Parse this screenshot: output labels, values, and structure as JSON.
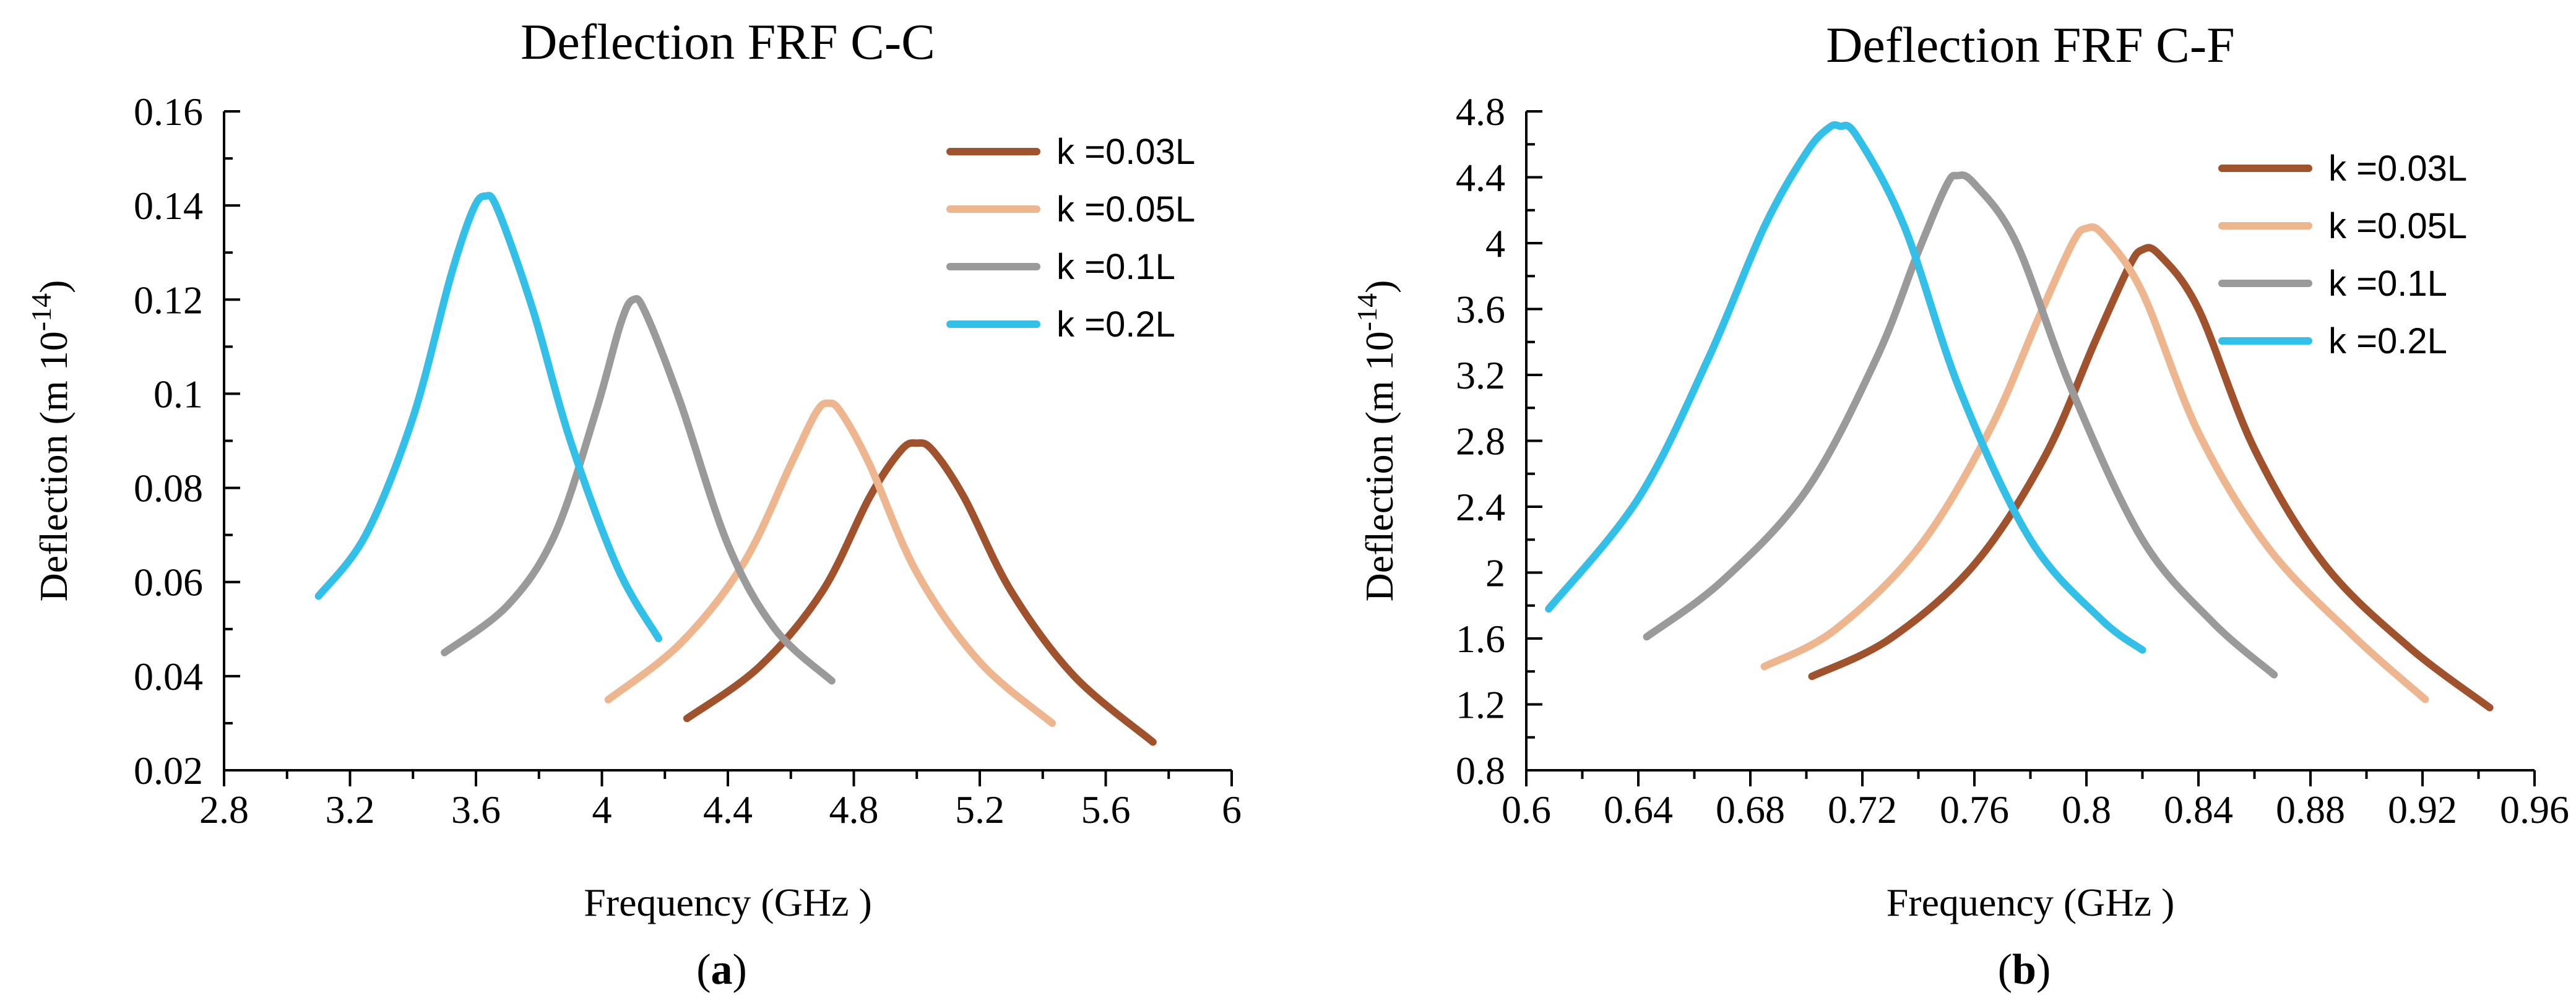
{
  "chart_data": [
    {
      "type": "line",
      "title": "Deflection FRF  C-C",
      "xlabel": "Frequency (GHz )",
      "ylabel_main": "Deflection (m 10",
      "ylabel_exp": "-14",
      "ylabel_tail": ")",
      "caption_open": "(",
      "caption_letter": "a",
      "caption_close": ")",
      "xlim": [
        2.8,
        6.0
      ],
      "ylim": [
        0.02,
        0.16
      ],
      "xticks": [
        2.8,
        3.2,
        3.6,
        4,
        4.4,
        4.8,
        5.2,
        5.6,
        6
      ],
      "xtick_labels": [
        "2.8",
        "3.2",
        "3.6",
        "4",
        "4.4",
        "4.8",
        "5.2",
        "5.6",
        "6"
      ],
      "yticks": [
        0.02,
        0.04,
        0.06,
        0.08,
        0.1,
        0.12,
        0.14,
        0.16
      ],
      "ytick_labels": [
        "0.02",
        "0.04",
        "0.06",
        "0.08",
        "0.1",
        "0.12",
        "0.14",
        "0.16"
      ],
      "grid": false,
      "legend_position": "top-right",
      "series": [
        {
          "name": "k =0.03L",
          "color": "#A0522D",
          "x": [
            4.27,
            4.5,
            4.7,
            4.85,
            4.95,
            5.0,
            5.05,
            5.15,
            5.3,
            5.5,
            5.75
          ],
          "y": [
            0.031,
            0.042,
            0.058,
            0.078,
            0.088,
            0.0895,
            0.088,
            0.078,
            0.058,
            0.04,
            0.026
          ]
        },
        {
          "name": "k =0.05L",
          "color": "#EDB68E",
          "x": [
            4.02,
            4.25,
            4.45,
            4.6,
            4.68,
            4.72,
            4.76,
            4.85,
            5.0,
            5.2,
            5.43
          ],
          "y": [
            0.035,
            0.047,
            0.064,
            0.085,
            0.096,
            0.098,
            0.096,
            0.085,
            0.062,
            0.043,
            0.03
          ]
        },
        {
          "name": "k =0.1L",
          "color": "#9A9A9A",
          "x": [
            3.5,
            3.7,
            3.85,
            3.98,
            4.06,
            4.1,
            4.14,
            4.25,
            4.4,
            4.55,
            4.73
          ],
          "y": [
            0.045,
            0.055,
            0.07,
            0.096,
            0.115,
            0.12,
            0.117,
            0.098,
            0.068,
            0.05,
            0.039
          ]
        },
        {
          "name": "k =0.2L",
          "color": "#33C0E8",
          "x": [
            3.1,
            3.25,
            3.4,
            3.52,
            3.59,
            3.63,
            3.67,
            3.78,
            3.9,
            4.05,
            4.18
          ],
          "y": [
            0.057,
            0.07,
            0.095,
            0.125,
            0.139,
            0.142,
            0.139,
            0.118,
            0.09,
            0.063,
            0.048
          ]
        }
      ]
    },
    {
      "type": "line",
      "title": "Deflection FRF  C-F",
      "xlabel": "Frequency (GHz )",
      "ylabel_main": "Deflection (m 10",
      "ylabel_exp": "-14",
      "ylabel_tail": ")",
      "caption_open": "(",
      "caption_letter": "b",
      "caption_close": ")",
      "xlim": [
        0.6,
        0.96
      ],
      "ylim": [
        0.8,
        4.8
      ],
      "xticks": [
        0.6,
        0.64,
        0.68,
        0.72,
        0.76,
        0.8,
        0.84,
        0.88,
        0.92,
        0.96
      ],
      "xtick_labels": [
        "0.6",
        "0.64",
        "0.68",
        "0.72",
        "0.76",
        "0.8",
        "0.84",
        "0.88",
        "0.92",
        "0.96"
      ],
      "yticks": [
        0.8,
        1.2,
        1.6,
        2,
        2.4,
        2.8,
        3.2,
        3.6,
        4,
        4.4,
        4.8
      ],
      "ytick_labels": [
        "0.8",
        "1.2",
        "1.6",
        "2",
        "2.4",
        "2.8",
        "3.2",
        "3.6",
        "4",
        "4.4",
        "4.8"
      ],
      "grid": false,
      "legend_position": "top-right",
      "series": [
        {
          "name": "k =0.03L",
          "color": "#A0522D",
          "x": [
            0.702,
            0.73,
            0.76,
            0.785,
            0.803,
            0.815,
            0.82,
            0.826,
            0.84,
            0.86,
            0.885,
            0.915,
            0.944
          ],
          "y": [
            1.37,
            1.6,
            2.05,
            2.7,
            3.4,
            3.85,
            3.96,
            3.93,
            3.6,
            2.75,
            2.05,
            1.55,
            1.18
          ]
        },
        {
          "name": "k =0.05L",
          "color": "#EDB68E",
          "x": [
            0.685,
            0.71,
            0.74,
            0.765,
            0.783,
            0.795,
            0.8,
            0.806,
            0.82,
            0.84,
            0.865,
            0.895,
            0.921
          ],
          "y": [
            1.43,
            1.65,
            2.15,
            2.85,
            3.55,
            4.0,
            4.09,
            4.05,
            3.7,
            2.85,
            2.15,
            1.62,
            1.23
          ]
        },
        {
          "name": "k =0.1L",
          "color": "#9A9A9A",
          "x": [
            0.643,
            0.67,
            0.7,
            0.725,
            0.74,
            0.75,
            0.754,
            0.76,
            0.775,
            0.795,
            0.82,
            0.845,
            0.867
          ],
          "y": [
            1.61,
            1.95,
            2.5,
            3.3,
            3.95,
            4.35,
            4.41,
            4.36,
            4.0,
            3.1,
            2.2,
            1.7,
            1.38
          ]
        },
        {
          "name": "k =0.2L",
          "color": "#33C0E8",
          "x": [
            0.608,
            0.64,
            0.665,
            0.685,
            0.7,
            0.708,
            0.712,
            0.718,
            0.735,
            0.755,
            0.78,
            0.805,
            0.82
          ],
          "y": [
            1.78,
            2.45,
            3.3,
            4.1,
            4.55,
            4.7,
            4.71,
            4.65,
            4.1,
            3.1,
            2.2,
            1.72,
            1.53
          ]
        }
      ]
    }
  ]
}
